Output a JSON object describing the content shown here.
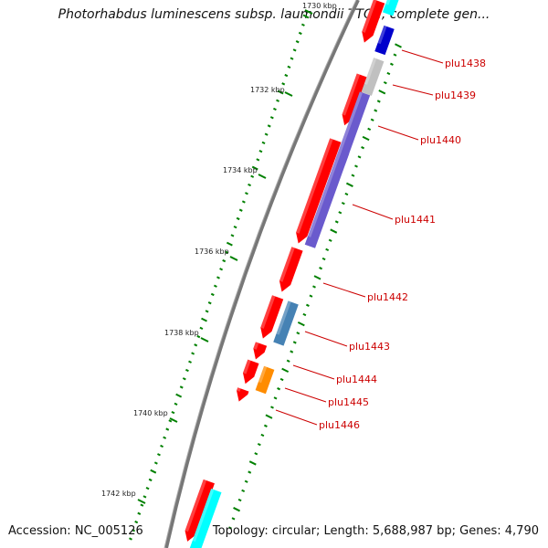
{
  "title": "Photorhabdus luminescens subsp. laumondii TTO1, complete gen...",
  "accession": "Accession: NC_005126",
  "topology": "Topology: circular; Length: 5,688,987 bp; Genes: 4,790",
  "scale_labels": [
    "1730 kbp",
    "1732 kbp",
    "1734 kbp",
    "1736 kbp",
    "1738 kbp",
    "1740 kbp",
    "1742 kbp"
  ],
  "genes": [
    {
      "name": "plu1438",
      "color": "#0000cc"
    },
    {
      "name": "plu1439",
      "color": "#c0c0c0"
    },
    {
      "name": "plu1440",
      "color": "#6a5acd"
    },
    {
      "name": "plu1441",
      "color": "#6a5acd"
    },
    {
      "name": "plu1442",
      "color": "#ff0000"
    },
    {
      "name": "plu1443",
      "color": "#4682b4"
    },
    {
      "name": "plu1444",
      "color": "#ff0000"
    },
    {
      "name": "plu1445",
      "color": "#ff8c00"
    },
    {
      "name": "plu1446",
      "color": "#ff0000"
    }
  ],
  "colors": {
    "backbone": "#7f7f7f",
    "forward_strand": "#ff0000",
    "cyan_feature": "#00ffff",
    "tick": "#008000",
    "label": "#cc0000"
  }
}
